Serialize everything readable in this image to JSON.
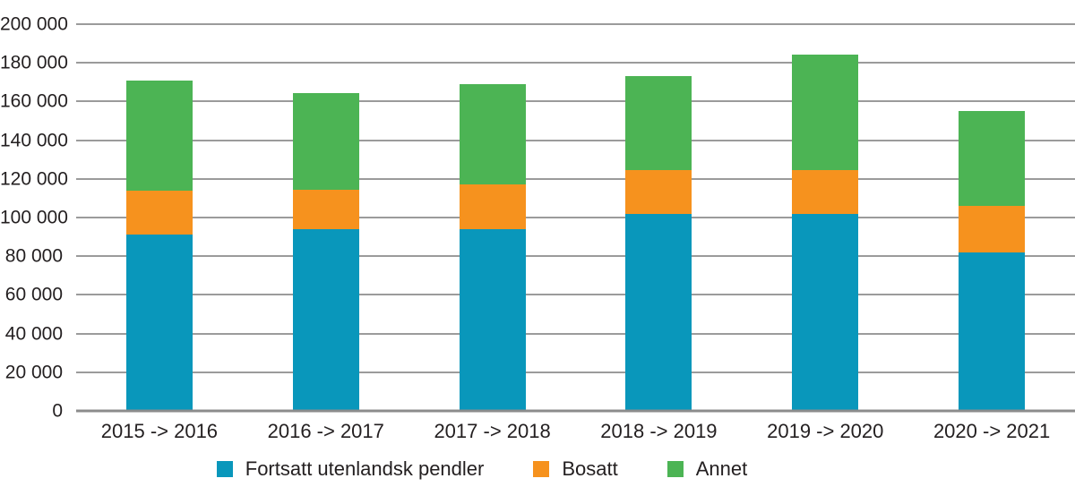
{
  "chart_data": {
    "type": "bar",
    "stacked": true,
    "title": "",
    "categories": [
      "2015 -> 2016",
      "2016 -> 2017",
      "2017 -> 2018",
      "2018 -> 2019",
      "2019 -> 2020",
      "2020 -> 2021"
    ],
    "series": [
      {
        "name": "Fortsatt utenlandsk pendler",
        "color": "#0997bb",
        "values": [
          91000,
          94000,
          94000,
          102000,
          102000,
          82000
        ]
      },
      {
        "name": "Bosatt",
        "color": "#f6921e",
        "values": [
          23000,
          20500,
          23000,
          22500,
          22500,
          24000
        ]
      },
      {
        "name": "Annet",
        "color": "#4cb454",
        "values": [
          57000,
          50000,
          52000,
          48500,
          60000,
          49000
        ]
      }
    ],
    "totals": [
      171000,
      164500,
      169000,
      173000,
      184500,
      155000
    ],
    "xlabel": "",
    "ylabel": "",
    "ylim": [
      0,
      200000
    ],
    "ytick_values": [
      0,
      20000,
      40000,
      60000,
      80000,
      100000,
      120000,
      140000,
      160000,
      180000,
      200000
    ],
    "ytick_labels": [
      "0",
      "20 000",
      "40 000",
      "60 000",
      "80 000",
      "100 000",
      "120 000",
      "140 000",
      "160 000",
      "180 000",
      "200 000"
    ],
    "grid": true,
    "legend_position": "bottom",
    "legend": [
      "Fortsatt utenlandsk pendler",
      "Bosatt",
      "Annet"
    ]
  },
  "colors": {
    "background": "#ffffff",
    "gridline": "#9b9b9b",
    "zero_line": "#8c8c8c",
    "text": "#231f20"
  }
}
